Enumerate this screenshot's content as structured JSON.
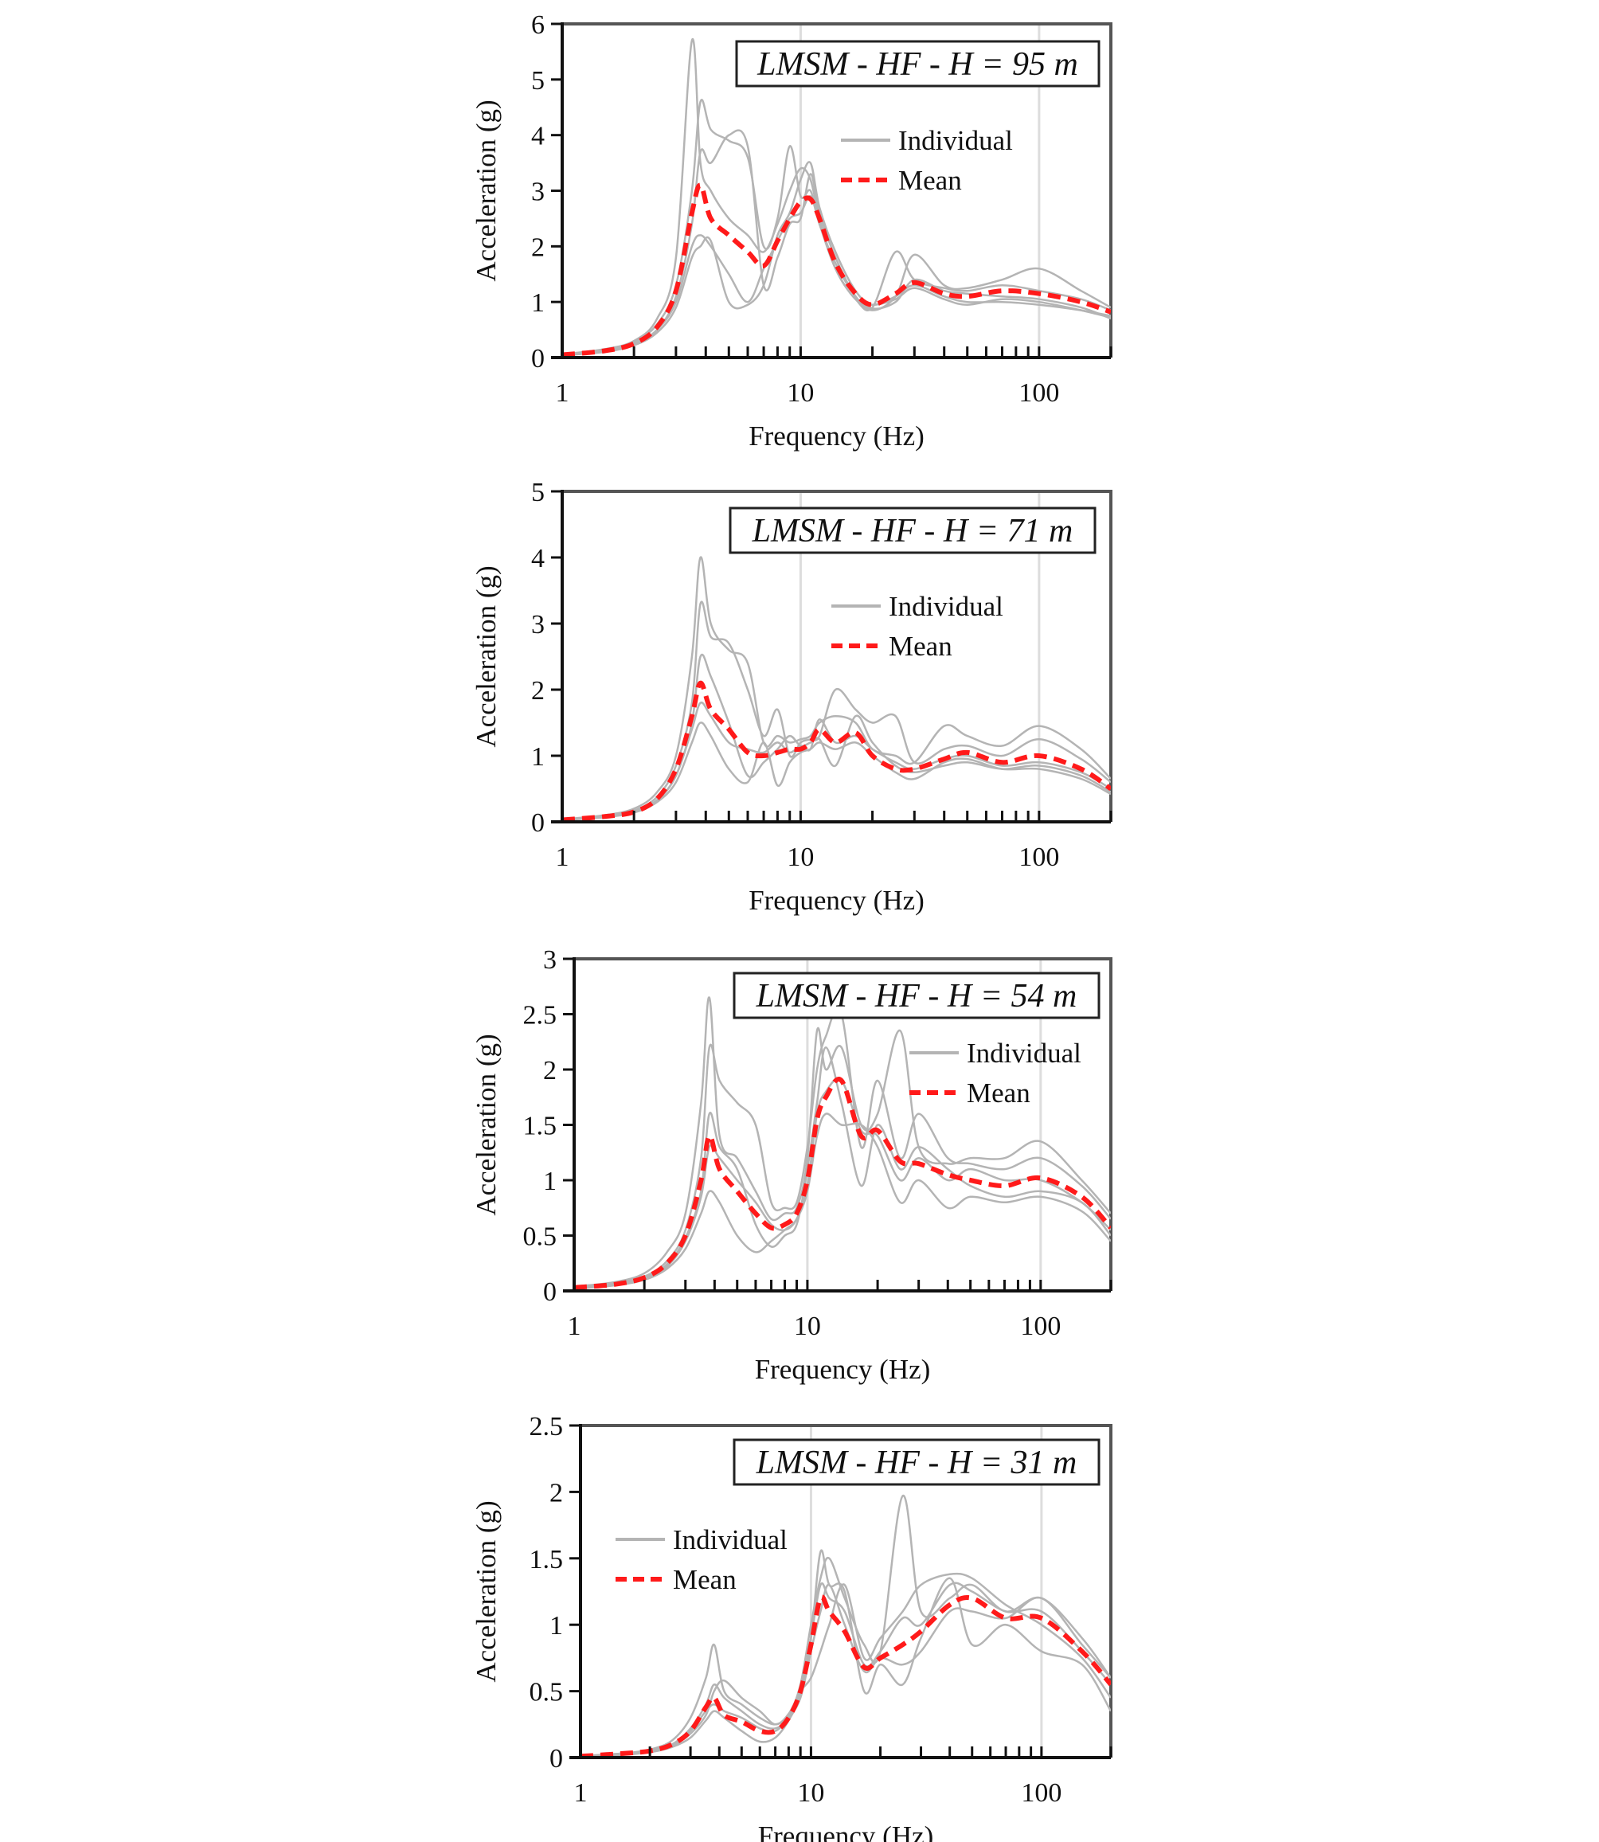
{
  "chart_data": [
    {
      "type": "line",
      "title": "LMSM - HF - H = 95 m",
      "xlabel": "Frequency (Hz)",
      "ylabel": "Acceleration (g)",
      "xscale": "log",
      "xlim": [
        1,
        200
      ],
      "ylim": [
        0,
        6
      ],
      "yticks": [
        "0",
        "1",
        "2",
        "3",
        "4",
        "5",
        "6"
      ],
      "xticks": [
        "1",
        "10",
        "100"
      ],
      "grid": "vertical at decades",
      "legend": {
        "position": "top-right",
        "individual_label": "Individual",
        "mean_label": "Mean"
      },
      "x": [
        1,
        1.5,
        2,
        2.5,
        3,
        3.5,
        3.8,
        4.2,
        5,
        6,
        7,
        8,
        9,
        10,
        11,
        12,
        14,
        17,
        20,
        25,
        30,
        40,
        50,
        70,
        100,
        150,
        200
      ],
      "mean": [
        0.05,
        0.12,
        0.25,
        0.55,
        1.2,
        2.6,
        3.1,
        2.5,
        2.2,
        1.9,
        1.65,
        2.1,
        2.5,
        2.8,
        2.85,
        2.5,
        1.7,
        1.15,
        0.95,
        1.15,
        1.35,
        1.15,
        1.1,
        1.2,
        1.15,
        1.0,
        0.82
      ],
      "individual": [
        [
          0.06,
          0.15,
          0.3,
          0.7,
          1.8,
          5.7,
          3.5,
          3.0,
          2.5,
          2.2,
          1.9,
          2.4,
          3.0,
          3.4,
          3.2,
          2.5,
          1.6,
          1.05,
          0.9,
          1.9,
          1.4,
          1.25,
          1.2,
          1.3,
          1.2,
          1.05,
          0.85
        ],
        [
          0.05,
          0.13,
          0.28,
          0.6,
          1.3,
          3.0,
          4.6,
          4.1,
          3.9,
          3.6,
          2.0,
          2.5,
          3.8,
          2.9,
          3.0,
          2.4,
          1.7,
          1.1,
          0.85,
          1.1,
          1.85,
          1.3,
          1.25,
          1.4,
          1.6,
          1.2,
          0.9
        ],
        [
          0.04,
          0.1,
          0.22,
          0.45,
          0.9,
          1.8,
          2.0,
          2.1,
          1.0,
          0.95,
          1.3,
          2.2,
          2.6,
          3.2,
          3.5,
          2.7,
          1.9,
          1.2,
          0.95,
          1.1,
          1.3,
          1.1,
          1.0,
          1.0,
          0.95,
          0.85,
          0.75
        ],
        [
          0.05,
          0.12,
          0.25,
          0.5,
          1.1,
          2.4,
          3.7,
          3.5,
          4.0,
          3.8,
          1.3,
          1.8,
          2.4,
          2.5,
          3.3,
          2.6,
          1.8,
          1.1,
          0.88,
          1.0,
          1.4,
          1.2,
          1.15,
          1.1,
          1.05,
          0.9,
          0.7
        ],
        [
          0.05,
          0.11,
          0.24,
          0.5,
          1.0,
          2.0,
          2.2,
          2.0,
          1.5,
          1.0,
          1.6,
          2.1,
          2.5,
          2.6,
          2.9,
          2.4,
          1.6,
          1.05,
          0.95,
          1.05,
          1.25,
          1.05,
          0.95,
          1.05,
          1.0,
          0.85,
          0.72
        ]
      ]
    },
    {
      "type": "line",
      "title": "LMSM - HF - H = 71 m",
      "xlabel": "Frequency (Hz)",
      "ylabel": "Acceleration (g)",
      "xscale": "log",
      "xlim": [
        1,
        200
      ],
      "ylim": [
        0,
        5
      ],
      "yticks": [
        "0",
        "1",
        "2",
        "3",
        "4",
        "5"
      ],
      "xticks": [
        "1",
        "10",
        "100"
      ],
      "grid": "vertical at decades",
      "legend": {
        "position": "top-right",
        "individual_label": "Individual",
        "mean_label": "Mean"
      },
      "x": [
        1,
        1.5,
        2,
        2.5,
        3,
        3.5,
        3.8,
        4.2,
        5,
        6,
        7,
        8,
        9,
        10,
        11,
        12,
        14,
        17,
        20,
        25,
        30,
        40,
        50,
        70,
        100,
        150,
        200
      ],
      "mean": [
        0.03,
        0.08,
        0.15,
        0.35,
        0.8,
        1.6,
        2.1,
        1.7,
        1.4,
        1.05,
        1.0,
        1.05,
        1.1,
        1.1,
        1.2,
        1.4,
        1.2,
        1.35,
        1.0,
        0.8,
        0.8,
        0.95,
        1.05,
        0.9,
        1.0,
        0.8,
        0.5
      ],
      "individual": [
        [
          0.04,
          0.1,
          0.2,
          0.45,
          1.0,
          2.5,
          4.0,
          3.0,
          2.6,
          2.4,
          1.2,
          1.3,
          1.2,
          1.25,
          1.3,
          1.5,
          1.6,
          1.5,
          1.1,
          1.0,
          0.9,
          1.45,
          1.3,
          1.15,
          1.45,
          1.1,
          0.65
        ],
        [
          0.03,
          0.08,
          0.17,
          0.38,
          0.85,
          1.8,
          3.3,
          2.8,
          2.7,
          2.0,
          1.3,
          1.7,
          1.0,
          1.2,
          1.25,
          1.3,
          2.0,
          1.7,
          1.5,
          1.6,
          0.9,
          1.1,
          1.15,
          1.0,
          1.25,
          0.95,
          0.6
        ],
        [
          0.03,
          0.07,
          0.14,
          0.3,
          0.6,
          1.2,
          1.5,
          1.3,
          0.8,
          0.6,
          1.2,
          0.55,
          0.9,
          1.05,
          1.1,
          1.2,
          1.1,
          1.2,
          1.0,
          0.75,
          0.65,
          0.9,
          0.95,
          0.8,
          0.8,
          0.65,
          0.42
        ],
        [
          0.03,
          0.08,
          0.16,
          0.33,
          0.7,
          1.5,
          2.5,
          2.2,
          1.5,
          0.7,
          0.9,
          1.1,
          1.3,
          1.15,
          1.2,
          1.25,
          0.85,
          1.6,
          1.2,
          0.85,
          0.75,
          0.85,
          0.9,
          0.8,
          0.85,
          0.7,
          0.45
        ],
        [
          0.03,
          0.07,
          0.15,
          0.32,
          0.7,
          1.4,
          1.8,
          1.6,
          1.2,
          1.1,
          1.05,
          1.2,
          1.05,
          1.15,
          1.1,
          1.55,
          1.2,
          1.3,
          1.1,
          0.9,
          0.8,
          0.95,
          1.0,
          0.85,
          0.9,
          0.75,
          0.5
        ]
      ]
    },
    {
      "type": "line",
      "title": "LMSM - HF - H = 54 m",
      "xlabel": "Frequency (Hz)",
      "ylabel": "Acceleration (g)",
      "xscale": "log",
      "xlim": [
        1,
        200
      ],
      "ylim": [
        0,
        3
      ],
      "yticks": [
        "0",
        "0.5",
        "1",
        "1.5",
        "2",
        "2.5",
        "3"
      ],
      "xticks": [
        "1",
        "10",
        "100"
      ],
      "grid": "vertical at decades",
      "legend": {
        "position": "top-right",
        "individual_label": "Individual",
        "mean_label": "Mean"
      },
      "x": [
        1,
        1.5,
        2,
        2.5,
        3,
        3.5,
        3.8,
        4.2,
        5,
        6,
        7,
        8,
        9,
        10,
        11,
        12,
        14,
        17,
        20,
        25,
        30,
        40,
        50,
        70,
        100,
        150,
        200
      ],
      "mean": [
        0.03,
        0.06,
        0.12,
        0.25,
        0.5,
        1.0,
        1.4,
        1.1,
        0.9,
        0.7,
        0.57,
        0.6,
        0.7,
        1.0,
        1.55,
        1.75,
        1.9,
        1.4,
        1.45,
        1.17,
        1.15,
        1.05,
        1.0,
        0.95,
        1.02,
        0.85,
        0.57
      ],
      "individual": [
        [
          0.04,
          0.08,
          0.16,
          0.35,
          0.7,
          1.7,
          2.65,
          1.4,
          1.2,
          0.9,
          0.65,
          0.7,
          0.75,
          1.2,
          2.35,
          2.0,
          2.2,
          1.5,
          1.6,
          2.35,
          1.3,
          1.15,
          1.2,
          1.2,
          1.35,
          1.0,
          0.7
        ],
        [
          0.03,
          0.07,
          0.13,
          0.27,
          0.55,
          1.2,
          2.2,
          1.9,
          1.7,
          1.5,
          0.8,
          0.75,
          0.8,
          1.3,
          2.0,
          2.3,
          2.5,
          1.3,
          1.9,
          1.2,
          1.6,
          1.2,
          1.15,
          1.1,
          1.2,
          0.95,
          0.65
        ],
        [
          0.02,
          0.05,
          0.1,
          0.2,
          0.38,
          0.7,
          0.9,
          0.8,
          0.5,
          0.35,
          0.45,
          0.55,
          0.65,
          0.9,
          1.4,
          1.6,
          1.5,
          1.5,
          1.3,
          0.8,
          1.0,
          0.75,
          0.85,
          0.8,
          0.85,
          0.72,
          0.45
        ],
        [
          0.03,
          0.06,
          0.12,
          0.24,
          0.48,
          0.9,
          1.6,
          1.3,
          1.1,
          0.6,
          0.4,
          0.5,
          0.6,
          1.1,
          1.7,
          2.2,
          1.7,
          0.95,
          1.5,
          1.1,
          1.3,
          1.1,
          0.95,
          0.85,
          0.9,
          0.8,
          0.5
        ],
        [
          0.03,
          0.06,
          0.11,
          0.22,
          0.45,
          0.85,
          1.3,
          1.2,
          1.0,
          0.8,
          0.6,
          0.55,
          0.65,
          0.95,
          1.6,
          1.8,
          1.9,
          1.45,
          1.4,
          1.0,
          1.2,
          1.0,
          1.1,
          1.0,
          1.0,
          0.8,
          0.55
        ]
      ]
    },
    {
      "type": "line",
      "title": "LMSM - HF - H = 31 m",
      "xlabel": "Frequency (Hz)",
      "ylabel": "Acceleration (g)",
      "xscale": "log",
      "xlim": [
        1,
        200
      ],
      "ylim": [
        0,
        2.5
      ],
      "yticks": [
        "0",
        "0.5",
        "1",
        "1.5",
        "2",
        "2.5"
      ],
      "xticks": [
        "1",
        "10",
        "100"
      ],
      "grid": "vertical at decades",
      "legend": {
        "position": "top-left",
        "individual_label": "Individual",
        "mean_label": "Mean"
      },
      "x": [
        1,
        1.5,
        2,
        2.5,
        3,
        3.5,
        3.8,
        4.2,
        5,
        6,
        7,
        8,
        9,
        10,
        11,
        12,
        14,
        17,
        20,
        25,
        30,
        40,
        50,
        70,
        100,
        150,
        200
      ],
      "mean": [
        0.01,
        0.03,
        0.05,
        0.1,
        0.2,
        0.38,
        0.45,
        0.32,
        0.27,
        0.2,
        0.2,
        0.3,
        0.5,
        0.85,
        1.2,
        1.1,
        0.95,
        0.68,
        0.75,
        0.85,
        0.95,
        1.15,
        1.2,
        1.05,
        1.05,
        0.8,
        0.55
      ],
      "individual": [
        [
          0.01,
          0.03,
          0.06,
          0.13,
          0.3,
          0.6,
          0.85,
          0.5,
          0.4,
          0.3,
          0.25,
          0.32,
          0.55,
          1.0,
          1.35,
          1.5,
          1.2,
          0.85,
          0.8,
          1.97,
          1.1,
          1.2,
          1.3,
          1.1,
          1.2,
          0.9,
          0.6
        ],
        [
          0.01,
          0.02,
          0.05,
          0.09,
          0.18,
          0.32,
          0.5,
          0.58,
          0.45,
          0.35,
          0.25,
          0.33,
          0.5,
          0.6,
          0.8,
          1.0,
          1.3,
          0.75,
          0.9,
          1.1,
          1.3,
          1.38,
          1.35,
          1.15,
          1.0,
          0.75,
          0.45
        ],
        [
          0.01,
          0.02,
          0.04,
          0.08,
          0.15,
          0.28,
          0.35,
          0.3,
          0.2,
          0.12,
          0.15,
          0.28,
          0.48,
          0.9,
          1.55,
          1.3,
          1.25,
          0.5,
          0.7,
          0.55,
          0.9,
          1.35,
          0.85,
          1.0,
          0.8,
          0.7,
          0.35
        ],
        [
          0.01,
          0.03,
          0.05,
          0.1,
          0.2,
          0.35,
          0.4,
          0.35,
          0.3,
          0.22,
          0.2,
          0.3,
          0.45,
          0.8,
          1.1,
          1.3,
          1.0,
          0.65,
          0.75,
          0.7,
          0.8,
          1.1,
          1.1,
          1.05,
          1.2,
          0.85,
          0.6
        ],
        [
          0.01,
          0.03,
          0.05,
          0.1,
          0.22,
          0.4,
          0.55,
          0.45,
          0.35,
          0.25,
          0.22,
          0.3,
          0.5,
          0.9,
          1.3,
          1.2,
          1.1,
          0.7,
          0.8,
          1.05,
          1.0,
          1.3,
          1.25,
          1.1,
          1.1,
          0.8,
          0.55
        ]
      ]
    }
  ],
  "colors": {
    "individual": "#b4b4b4",
    "mean": "#ff1a1a",
    "axis": "#111111",
    "frame": "#555555",
    "grid": "#dddddd"
  }
}
